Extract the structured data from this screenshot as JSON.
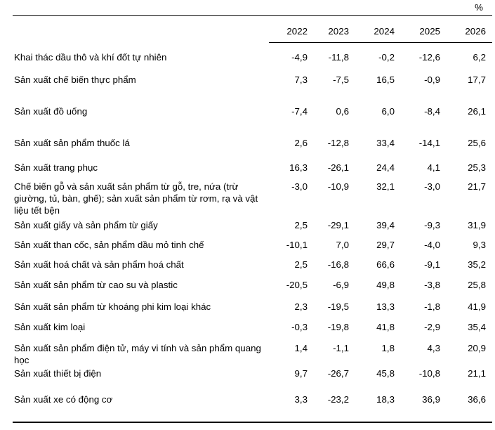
{
  "table": {
    "unit_label": "%",
    "year_headers": [
      "2022",
      "2023",
      "2024",
      "2025",
      "2026"
    ],
    "rows": [
      {
        "label": "Khai thác dầu thô và khí đốt tự nhiên",
        "values": [
          "-4,9",
          "-11,8",
          "-0,2",
          "-12,6",
          "6,2"
        ]
      },
      {
        "label": "Sản xuất chế biến thực phẩm",
        "values": [
          "7,3",
          "-7,5",
          "16,5",
          "-0,9",
          "17,7"
        ]
      },
      {
        "label": "Sản xuất đồ uống",
        "values": [
          "-7,4",
          "0,6",
          "6,0",
          "-8,4",
          "26,1"
        ]
      },
      {
        "label": "Sản xuất sản phẩm thuốc lá",
        "values": [
          "2,6",
          "-12,8",
          "33,4",
          "-14,1",
          "25,6"
        ]
      },
      {
        "label": "Sản xuất trang phục",
        "values": [
          "16,3",
          "-26,1",
          "24,4",
          "4,1",
          "25,3"
        ]
      },
      {
        "label": "Chế biến gỗ và sản xuất sản phẩm từ gỗ, tre, nứa (trừ giường, tủ, bàn, ghế); sản xuất sản phẩm từ rơm, rạ và vật liệu tết bện",
        "values": [
          "-3,0",
          "-10,9",
          "32,1",
          "-3,0",
          "21,7"
        ]
      },
      {
        "label": "Sản xuất giấy và sản phẩm từ giấy",
        "values": [
          "2,5",
          "-29,1",
          "39,4",
          "-9,3",
          "31,9"
        ]
      },
      {
        "label": "Sản xuất than cốc, sản phẩm dầu mỏ tinh chế",
        "values": [
          "-10,1",
          "7,0",
          "29,7",
          "-4,0",
          "9,3"
        ]
      },
      {
        "label": "Sản xuất hoá chất và sản phẩm hoá chất",
        "values": [
          "2,5",
          "-16,8",
          "66,6",
          "-9,1",
          "35,2"
        ]
      },
      {
        "label": "Sản xuất sản phẩm từ cao su và plastic",
        "values": [
          "-20,5",
          "-6,9",
          "49,8",
          "-3,8",
          "25,8"
        ]
      },
      {
        "label": "Sản xuất sản phẩm từ khoáng phi kim loại khác",
        "values": [
          "2,3",
          "-19,5",
          "13,3",
          "-1,8",
          "41,9"
        ]
      },
      {
        "label": "Sản xuất kim loại",
        "values": [
          "-0,3",
          "-19,8",
          "41,8",
          "-2,9",
          "35,4"
        ]
      },
      {
        "label": "Sản xuất sản phẩm điện tử, máy vi tính và sản phẩm quang học",
        "values": [
          "1,4",
          "-1,1",
          "1,8",
          "4,3",
          "20,9"
        ]
      },
      {
        "label": "Sản xuất thiết bị điện",
        "values": [
          "9,7",
          "-26,7",
          "45,8",
          "-10,8",
          "21,1"
        ]
      },
      {
        "label": "Sản xuất xe có động cơ",
        "values": [
          "3,3",
          "-23,2",
          "18,3",
          "36,9",
          "36,6"
        ]
      }
    ]
  }
}
